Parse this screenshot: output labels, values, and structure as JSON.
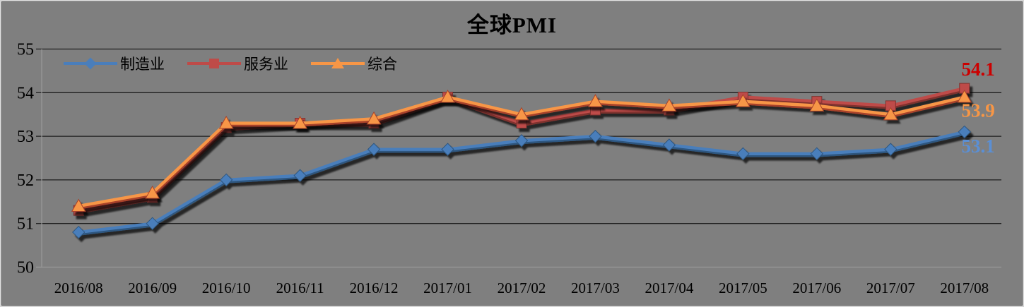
{
  "title": "全球PMI",
  "frame": {
    "background": "#7f7f7f",
    "border_color": "#d4d4d4",
    "gridline_color": "#1f1f1f",
    "baseline_color": "#9a9a9a"
  },
  "legend": [
    {
      "label": "制造业",
      "marker": "diamond",
      "color": "#4a7ebb"
    },
    {
      "label": "服务业",
      "marker": "square",
      "color": "#be4b48"
    },
    {
      "label": "综合",
      "marker": "triangle",
      "color": "#f79646"
    }
  ],
  "chart_data": {
    "type": "line",
    "title": "全球PMI",
    "xlabel": "",
    "ylabel": "",
    "ylim": [
      50,
      55
    ],
    "yticks": [
      50,
      51,
      52,
      53,
      54,
      55
    ],
    "grid": true,
    "legend_position": "top-left-inside",
    "categories": [
      "2016/08",
      "2016/09",
      "2016/10",
      "2016/11",
      "2016/12",
      "2017/01",
      "2017/02",
      "2017/03",
      "2017/04",
      "2017/05",
      "2017/06",
      "2017/07",
      "2017/08"
    ],
    "series": [
      {
        "key": "manufacturing",
        "name": "制造业",
        "marker": "diamond",
        "color": "#4a7ebb",
        "dark": "#2e567f",
        "values": [
          50.8,
          51.0,
          52.0,
          52.1,
          52.7,
          52.7,
          52.9,
          53.0,
          52.8,
          52.6,
          52.6,
          52.7,
          53.1
        ],
        "end_label": {
          "text": "53.1",
          "color": "#5b8fd4"
        }
      },
      {
        "key": "services",
        "name": "服务业",
        "marker": "square",
        "color": "#be4b48",
        "dark": "#7f302d",
        "values": [
          51.3,
          51.6,
          53.2,
          53.3,
          53.3,
          53.9,
          53.3,
          53.6,
          53.6,
          53.9,
          53.8,
          53.7,
          54.1
        ],
        "end_label": {
          "text": "54.1",
          "color": "#cc0000"
        }
      },
      {
        "key": "composite",
        "name": "综合",
        "marker": "triangle",
        "color": "#f79646",
        "dark": "#a8422a",
        "values": [
          51.4,
          51.7,
          53.3,
          53.3,
          53.4,
          53.9,
          53.5,
          53.8,
          53.7,
          53.8,
          53.7,
          53.5,
          53.9
        ],
        "end_label": {
          "text": "53.9",
          "color": "#f79646"
        }
      }
    ]
  }
}
